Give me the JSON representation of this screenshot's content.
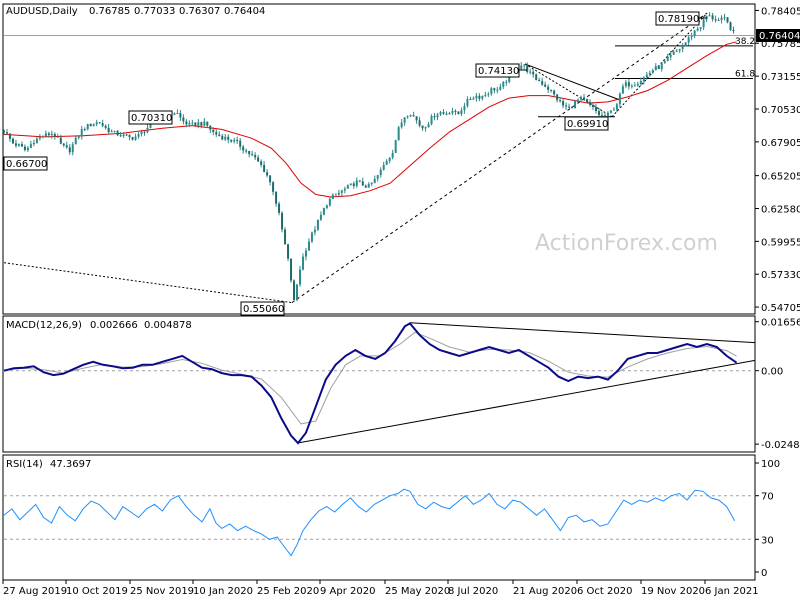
{
  "chart_data": {
    "type": "candlestick",
    "symbol_title": "AUDUSD,Daily",
    "ohlc": {
      "open": "0.76785",
      "high": "0.77033",
      "low": "0.76307",
      "close": "0.76404"
    },
    "price_axis": {
      "ticks": [
        "0.78405",
        "0.75785",
        "0.73155",
        "0.70530",
        "0.67905",
        "0.65205",
        "0.62580",
        "0.59955",
        "0.57330",
        "0.54705"
      ],
      "current_price_label": "0.76404",
      "ylim": [
        0.5415,
        0.7892
      ]
    },
    "x_axis": {
      "ticks": [
        "27 Aug 2019",
        "10 Oct 2019",
        "25 Nov 2019",
        "10 Jan 2020",
        "25 Feb 2020",
        "9 Apr 2020",
        "25 May 2020",
        "8 Jul 2020",
        "21 Aug 2020",
        "6 Oct 2020",
        "19 Nov 2020",
        "6 Jan 2021"
      ]
    },
    "price_annotations": [
      {
        "label": "0.78190",
        "value": 0.7819
      },
      {
        "label": "0.74130",
        "value": 0.7413
      },
      {
        "label": "0.70310",
        "value": 0.7031
      },
      {
        "label": "0.69910",
        "value": 0.6991
      },
      {
        "label": "0.66700",
        "value": 0.667
      },
      {
        "label": "0.55060",
        "value": 0.5506
      }
    ],
    "fib_levels": [
      {
        "label": "38.2",
        "value": 0.7557
      },
      {
        "label": "61.8",
        "value": 0.7297
      }
    ],
    "price_path": [
      [
        0,
        0.688
      ],
      [
        9,
        0.678
      ],
      [
        15,
        0.676
      ],
      [
        22,
        0.672
      ],
      [
        30,
        0.68
      ],
      [
        40,
        0.684
      ],
      [
        50,
        0.686
      ],
      [
        58,
        0.676
      ],
      [
        66,
        0.672
      ],
      [
        72,
        0.68
      ],
      [
        80,
        0.69
      ],
      [
        88,
        0.693
      ],
      [
        96,
        0.695
      ],
      [
        104,
        0.689
      ],
      [
        112,
        0.686
      ],
      [
        120,
        0.684
      ],
      [
        128,
        0.682
      ],
      [
        136,
        0.684
      ],
      [
        144,
        0.69
      ],
      [
        152,
        0.694
      ],
      [
        160,
        0.697
      ],
      [
        168,
        0.701
      ],
      [
        174,
        0.703
      ],
      [
        180,
        0.696
      ],
      [
        188,
        0.692
      ],
      [
        196,
        0.694
      ],
      [
        204,
        0.693
      ],
      [
        212,
        0.686
      ],
      [
        220,
        0.683
      ],
      [
        228,
        0.681
      ],
      [
        236,
        0.678
      ],
      [
        244,
        0.672
      ],
      [
        252,
        0.667
      ],
      [
        260,
        0.66
      ],
      [
        266,
        0.652
      ],
      [
        272,
        0.64
      ],
      [
        278,
        0.62
      ],
      [
        283,
        0.6
      ],
      [
        288,
        0.58
      ],
      [
        293,
        0.551
      ],
      [
        298,
        0.575
      ],
      [
        303,
        0.59
      ],
      [
        308,
        0.6
      ],
      [
        314,
        0.61
      ],
      [
        320,
        0.62
      ],
      [
        326,
        0.63
      ],
      [
        332,
        0.635
      ],
      [
        338,
        0.638
      ],
      [
        344,
        0.641
      ],
      [
        350,
        0.644
      ],
      [
        356,
        0.647
      ],
      [
        362,
        0.645
      ],
      [
        368,
        0.643
      ],
      [
        374,
        0.648
      ],
      [
        380,
        0.655
      ],
      [
        386,
        0.664
      ],
      [
        392,
        0.67
      ],
      [
        398,
        0.688
      ],
      [
        404,
        0.699
      ],
      [
        410,
        0.703
      ],
      [
        416,
        0.697
      ],
      [
        422,
        0.69
      ],
      [
        428,
        0.694
      ],
      [
        434,
        0.7
      ],
      [
        440,
        0.703
      ],
      [
        446,
        0.701
      ],
      [
        452,
        0.705
      ],
      [
        458,
        0.7
      ],
      [
        464,
        0.708
      ],
      [
        470,
        0.713
      ],
      [
        476,
        0.716
      ],
      [
        482,
        0.715
      ],
      [
        488,
        0.718
      ],
      [
        494,
        0.722
      ],
      [
        500,
        0.72
      ],
      [
        506,
        0.727
      ],
      [
        512,
        0.733
      ],
      [
        518,
        0.738
      ],
      [
        524,
        0.741
      ],
      [
        530,
        0.735
      ],
      [
        536,
        0.73
      ],
      [
        542,
        0.727
      ],
      [
        548,
        0.723
      ],
      [
        554,
        0.718
      ],
      [
        560,
        0.712
      ],
      [
        566,
        0.707
      ],
      [
        572,
        0.706
      ],
      [
        578,
        0.712
      ],
      [
        584,
        0.713
      ],
      [
        590,
        0.709
      ],
      [
        596,
        0.705
      ],
      [
        602,
        0.7
      ],
      [
        608,
        0.699
      ],
      [
        614,
        0.704
      ],
      [
        620,
        0.711
      ],
      [
        626,
        0.725
      ],
      [
        632,
        0.725
      ],
      [
        638,
        0.726
      ],
      [
        644,
        0.729
      ],
      [
        650,
        0.733
      ],
      [
        656,
        0.737
      ],
      [
        662,
        0.739
      ],
      [
        668,
        0.743
      ],
      [
        674,
        0.748
      ],
      [
        680,
        0.752
      ],
      [
        686,
        0.756
      ],
      [
        692,
        0.762
      ],
      [
        698,
        0.768
      ],
      [
        704,
        0.772
      ],
      [
        710,
        0.78
      ],
      [
        716,
        0.778
      ],
      [
        722,
        0.776
      ],
      [
        728,
        0.777
      ],
      [
        734,
        0.77
      ],
      [
        738,
        0.764
      ]
    ],
    "sma_path": [
      [
        0,
        0.685
      ],
      [
        40,
        0.683
      ],
      [
        80,
        0.684
      ],
      [
        120,
        0.686
      ],
      [
        160,
        0.69
      ],
      [
        190,
        0.692
      ],
      [
        220,
        0.689
      ],
      [
        250,
        0.682
      ],
      [
        270,
        0.674
      ],
      [
        285,
        0.662
      ],
      [
        300,
        0.646
      ],
      [
        315,
        0.637
      ],
      [
        330,
        0.635
      ],
      [
        350,
        0.636
      ],
      [
        370,
        0.64
      ],
      [
        390,
        0.646
      ],
      [
        410,
        0.66
      ],
      [
        430,
        0.674
      ],
      [
        450,
        0.687
      ],
      [
        470,
        0.697
      ],
      [
        490,
        0.707
      ],
      [
        510,
        0.714
      ],
      [
        530,
        0.716
      ],
      [
        550,
        0.716
      ],
      [
        570,
        0.713
      ],
      [
        590,
        0.71
      ],
      [
        610,
        0.711
      ],
      [
        630,
        0.715
      ],
      [
        650,
        0.72
      ],
      [
        670,
        0.728
      ],
      [
        690,
        0.738
      ],
      [
        710,
        0.748
      ],
      [
        730,
        0.757
      ],
      [
        740,
        0.759
      ]
    ],
    "macd": {
      "label": "MACD(12,26,9)",
      "main_value": "0.002666",
      "signal_value": "0.004878",
      "ticks": [
        "0.016567",
        "0.00",
        "-0.02484"
      ],
      "ylim": [
        -0.0275,
        0.0185
      ],
      "main_path": [
        [
          0,
          0.0
        ],
        [
          10,
          0.0008
        ],
        [
          20,
          0.001
        ],
        [
          30,
          0.0015
        ],
        [
          40,
          -0.0005
        ],
        [
          50,
          -0.0015
        ],
        [
          60,
          -0.001
        ],
        [
          70,
          0.0005
        ],
        [
          80,
          0.002
        ],
        [
          90,
          0.003
        ],
        [
          100,
          0.002
        ],
        [
          110,
          0.0015
        ],
        [
          120,
          0.0008
        ],
        [
          130,
          0.001
        ],
        [
          140,
          0.002
        ],
        [
          150,
          0.002
        ],
        [
          160,
          0.003
        ],
        [
          170,
          0.004
        ],
        [
          180,
          0.005
        ],
        [
          190,
          0.003
        ],
        [
          200,
          0.001
        ],
        [
          210,
          0.0005
        ],
        [
          220,
          -0.0008
        ],
        [
          230,
          -0.0015
        ],
        [
          240,
          -0.0015
        ],
        [
          250,
          -0.002
        ],
        [
          260,
          -0.005
        ],
        [
          270,
          -0.009
        ],
        [
          280,
          -0.016
        ],
        [
          290,
          -0.022
        ],
        [
          297,
          -0.0245
        ],
        [
          305,
          -0.021
        ],
        [
          315,
          -0.012
        ],
        [
          325,
          -0.003
        ],
        [
          335,
          0.002
        ],
        [
          345,
          0.005
        ],
        [
          355,
          0.007
        ],
        [
          365,
          0.005
        ],
        [
          375,
          0.004
        ],
        [
          385,
          0.006
        ],
        [
          395,
          0.01
        ],
        [
          405,
          0.015
        ],
        [
          410,
          0.016
        ],
        [
          420,
          0.012
        ],
        [
          430,
          0.009
        ],
        [
          440,
          0.007
        ],
        [
          450,
          0.006
        ],
        [
          460,
          0.005
        ],
        [
          470,
          0.006
        ],
        [
          480,
          0.007
        ],
        [
          490,
          0.008
        ],
        [
          500,
          0.007
        ],
        [
          510,
          0.006
        ],
        [
          520,
          0.007
        ],
        [
          530,
          0.005
        ],
        [
          540,
          0.003
        ],
        [
          550,
          0.001
        ],
        [
          560,
          -0.002
        ],
        [
          570,
          -0.0035
        ],
        [
          580,
          -0.002
        ],
        [
          590,
          -0.0025
        ],
        [
          600,
          -0.002
        ],
        [
          610,
          -0.003
        ],
        [
          620,
          0.0
        ],
        [
          630,
          0.004
        ],
        [
          640,
          0.005
        ],
        [
          650,
          0.006
        ],
        [
          660,
          0.006
        ],
        [
          670,
          0.007
        ],
        [
          680,
          0.008
        ],
        [
          690,
          0.009
        ],
        [
          700,
          0.008
        ],
        [
          710,
          0.009
        ],
        [
          720,
          0.008
        ],
        [
          730,
          0.005
        ],
        [
          740,
          0.0027
        ]
      ],
      "signal_path": [
        [
          0,
          0.0002
        ],
        [
          20,
          0.0008
        ],
        [
          40,
          0.0003
        ],
        [
          60,
          -0.0008
        ],
        [
          80,
          0.0008
        ],
        [
          100,
          0.0022
        ],
        [
          120,
          0.0012
        ],
        [
          140,
          0.0014
        ],
        [
          160,
          0.0024
        ],
        [
          180,
          0.0038
        ],
        [
          200,
          0.0025
        ],
        [
          220,
          0.0002
        ],
        [
          240,
          -0.0012
        ],
        [
          260,
          -0.0028
        ],
        [
          280,
          -0.009
        ],
        [
          300,
          -0.018
        ],
        [
          315,
          -0.017
        ],
        [
          330,
          -0.006
        ],
        [
          345,
          0.002
        ],
        [
          360,
          0.005
        ],
        [
          380,
          0.005
        ],
        [
          400,
          0.009
        ],
        [
          415,
          0.013
        ],
        [
          430,
          0.011
        ],
        [
          450,
          0.008
        ],
        [
          470,
          0.0063
        ],
        [
          490,
          0.0072
        ],
        [
          510,
          0.007
        ],
        [
          530,
          0.0062
        ],
        [
          550,
          0.0032
        ],
        [
          570,
          -0.0005
        ],
        [
          590,
          -0.0018
        ],
        [
          610,
          -0.0022
        ],
        [
          630,
          0.0012
        ],
        [
          650,
          0.004
        ],
        [
          670,
          0.006
        ],
        [
          690,
          0.0075
        ],
        [
          710,
          0.0082
        ],
        [
          730,
          0.0068
        ],
        [
          740,
          0.0049
        ]
      ]
    },
    "rsi": {
      "label": "RSI(14)",
      "value": "47.3697",
      "ticks": [
        "100",
        "70",
        "30",
        "0"
      ],
      "ylim": [
        0,
        100
      ],
      "levels": [
        70,
        30
      ],
      "path": [
        [
          0,
          52
        ],
        [
          8,
          58
        ],
        [
          16,
          48
        ],
        [
          24,
          55
        ],
        [
          32,
          62
        ],
        [
          40,
          50
        ],
        [
          48,
          45
        ],
        [
          56,
          60
        ],
        [
          64,
          52
        ],
        [
          72,
          47
        ],
        [
          80,
          58
        ],
        [
          88,
          65
        ],
        [
          96,
          62
        ],
        [
          104,
          55
        ],
        [
          112,
          48
        ],
        [
          120,
          60
        ],
        [
          128,
          55
        ],
        [
          136,
          50
        ],
        [
          144,
          58
        ],
        [
          152,
          62
        ],
        [
          160,
          56
        ],
        [
          168,
          66
        ],
        [
          176,
          70
        ],
        [
          184,
          60
        ],
        [
          192,
          52
        ],
        [
          200,
          46
        ],
        [
          208,
          58
        ],
        [
          214,
          45
        ],
        [
          220,
          40
        ],
        [
          228,
          44
        ],
        [
          236,
          38
        ],
        [
          244,
          42
        ],
        [
          252,
          38
        ],
        [
          260,
          35
        ],
        [
          268,
          30
        ],
        [
          276,
          32
        ],
        [
          284,
          22
        ],
        [
          290,
          15
        ],
        [
          296,
          25
        ],
        [
          302,
          38
        ],
        [
          310,
          48
        ],
        [
          318,
          56
        ],
        [
          326,
          60
        ],
        [
          334,
          55
        ],
        [
          342,
          62
        ],
        [
          350,
          68
        ],
        [
          358,
          60
        ],
        [
          366,
          55
        ],
        [
          374,
          62
        ],
        [
          382,
          66
        ],
        [
          390,
          70
        ],
        [
          398,
          72
        ],
        [
          404,
          76
        ],
        [
          410,
          74
        ],
        [
          418,
          62
        ],
        [
          426,
          58
        ],
        [
          434,
          64
        ],
        [
          442,
          60
        ],
        [
          450,
          58
        ],
        [
          458,
          64
        ],
        [
          466,
          70
        ],
        [
          474,
          62
        ],
        [
          482,
          66
        ],
        [
          490,
          72
        ],
        [
          498,
          62
        ],
        [
          506,
          58
        ],
        [
          514,
          66
        ],
        [
          522,
          64
        ],
        [
          530,
          58
        ],
        [
          538,
          52
        ],
        [
          546,
          58
        ],
        [
          554,
          48
        ],
        [
          562,
          38
        ],
        [
          570,
          50
        ],
        [
          578,
          52
        ],
        [
          586,
          46
        ],
        [
          594,
          48
        ],
        [
          602,
          42
        ],
        [
          610,
          44
        ],
        [
          618,
          55
        ],
        [
          626,
          66
        ],
        [
          634,
          62
        ],
        [
          642,
          66
        ],
        [
          650,
          64
        ],
        [
          658,
          68
        ],
        [
          666,
          65
        ],
        [
          674,
          70
        ],
        [
          682,
          72
        ],
        [
          690,
          66
        ],
        [
          698,
          75
        ],
        [
          706,
          74
        ],
        [
          714,
          68
        ],
        [
          722,
          66
        ],
        [
          730,
          60
        ],
        [
          738,
          47
        ]
      ]
    },
    "watermark": "ActionForex.com"
  }
}
